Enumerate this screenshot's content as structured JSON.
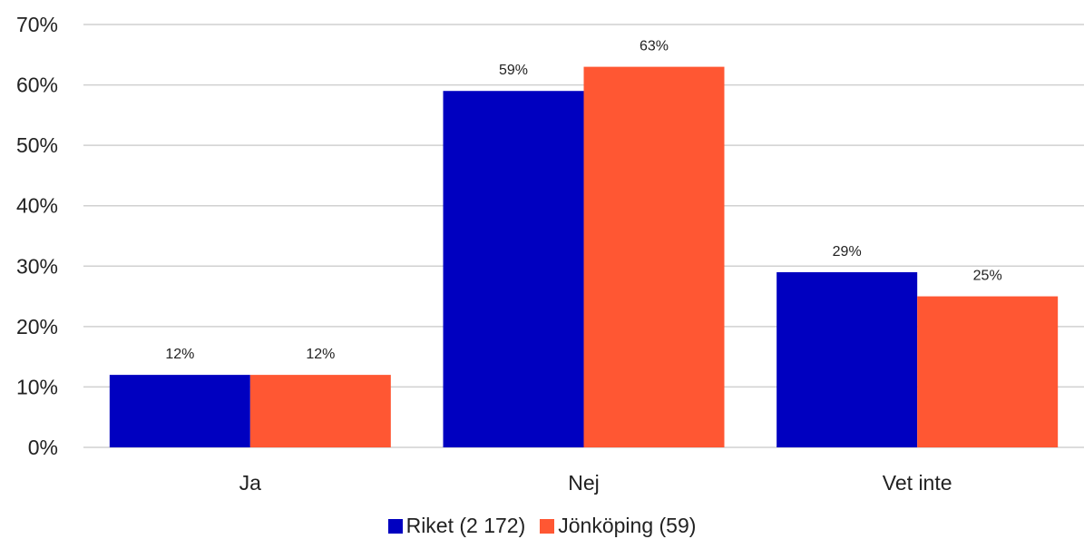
{
  "chart_data": {
    "type": "bar",
    "categories": [
      "Ja",
      "Nej",
      "Vet inte"
    ],
    "series": [
      {
        "name": "Riket (2 172)",
        "values": [
          12,
          59,
          29
        ],
        "labels": [
          "12%",
          "59%",
          "29%"
        ],
        "color": "#0000C0"
      },
      {
        "name": "Jönköping (59)",
        "values": [
          12,
          63,
          25
        ],
        "labels": [
          "12%",
          "63%",
          "25%"
        ],
        "color": "#FF5733"
      }
    ],
    "ylim": [
      0,
      70
    ],
    "yticks": [
      0,
      10,
      20,
      30,
      40,
      50,
      60,
      70
    ],
    "ytick_labels": [
      "0%",
      "10%",
      "20%",
      "30%",
      "40%",
      "50%",
      "60%",
      "70%"
    ],
    "grid": true,
    "legend_position": "bottom",
    "title": "",
    "xlabel": "",
    "ylabel": ""
  }
}
